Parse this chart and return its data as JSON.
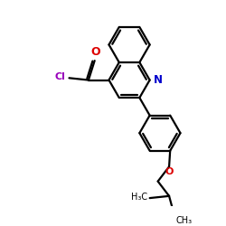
{
  "bg_color": "#ffffff",
  "line_color": "#000000",
  "N_color": "#0000cc",
  "O_color": "#dd0000",
  "Cl_color": "#9900bb",
  "lw": 1.6,
  "figsize": [
    2.5,
    2.5
  ],
  "dpi": 100,
  "xlim": [
    0,
    10
  ],
  "ylim": [
    0,
    10
  ]
}
